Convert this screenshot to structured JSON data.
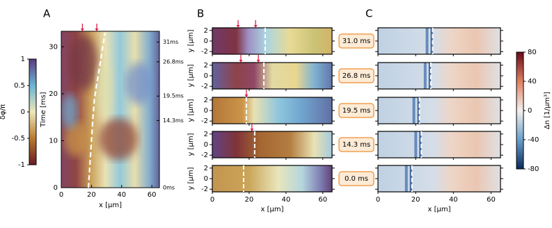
{
  "chart_data": [
    {
      "type": "heatmap",
      "label": "A",
      "xlabel": "x [μm]",
      "ylabel": "Time [ms]",
      "xlim": [
        0,
        65
      ],
      "ylim": [
        0,
        33.3
      ],
      "xticks": [
        0,
        20,
        40,
        60
      ],
      "yticks": [
        0,
        10,
        20,
        30
      ],
      "y2ticks": [
        {
          "value": 0,
          "label": "0ms"
        },
        {
          "value": 14.3,
          "label": "14.3ms"
        },
        {
          "value": 19.5,
          "label": "19.5ms"
        },
        {
          "value": 26.8,
          "label": "26.8ms"
        },
        {
          "value": 31,
          "label": "31ms"
        }
      ],
      "front": {
        "x": [
          18,
          19,
          20,
          21,
          22,
          24,
          26,
          28,
          29
        ],
        "y": [
          0,
          5,
          10,
          15,
          19,
          23,
          27,
          31,
          33
        ]
      },
      "arrows": [
        14,
        23.5
      ],
      "colorbar": {
        "label": "δφ/π",
        "lim": [
          -1,
          1
        ],
        "ticks": [
          -1,
          -0.5,
          0,
          0.5,
          1
        ]
      }
    },
    {
      "type": "heatmap-stack",
      "label": "B",
      "xlabel": "x [μm]",
      "ylabel": "y [μm]",
      "xlim": [
        0,
        65
      ],
      "ylim": [
        -2.5,
        2.5
      ],
      "xticks": [
        0,
        20,
        40,
        60
      ],
      "yticks": [
        -2,
        0,
        2
      ],
      "rows": [
        {
          "time_label": "31.0 ms",
          "front": 28.7,
          "arrows": [
            14,
            23.5
          ]
        },
        {
          "time_label": "26.8 ms",
          "front": 28,
          "arrows": [
            15.5,
            25
          ]
        },
        {
          "time_label": "19.5 ms",
          "front": 18.5,
          "arrows": [
            18.5
          ]
        },
        {
          "time_label": "14.3 ms",
          "front": 23,
          "arrows": [
            21.5
          ]
        },
        {
          "time_label": "0.0 ms",
          "front": 17,
          "arrows": []
        }
      ]
    },
    {
      "type": "heatmap-stack",
      "label": "C",
      "xlabel": "x [μm]",
      "xlim": [
        0,
        65
      ],
      "ylim": [
        -2.5,
        2.5
      ],
      "xticks": [
        0,
        20,
        40,
        60
      ],
      "yticks": [
        -2,
        0,
        2
      ],
      "rows": [
        {
          "front": 29
        },
        {
          "front": 28
        },
        {
          "front": 22
        },
        {
          "front": 23
        },
        {
          "front": 18
        }
      ],
      "colorbar": {
        "label": "Δn [1/μm³]",
        "lim": [
          -80,
          80
        ],
        "ticks": [
          -80,
          -40,
          0,
          40,
          80
        ]
      }
    }
  ]
}
